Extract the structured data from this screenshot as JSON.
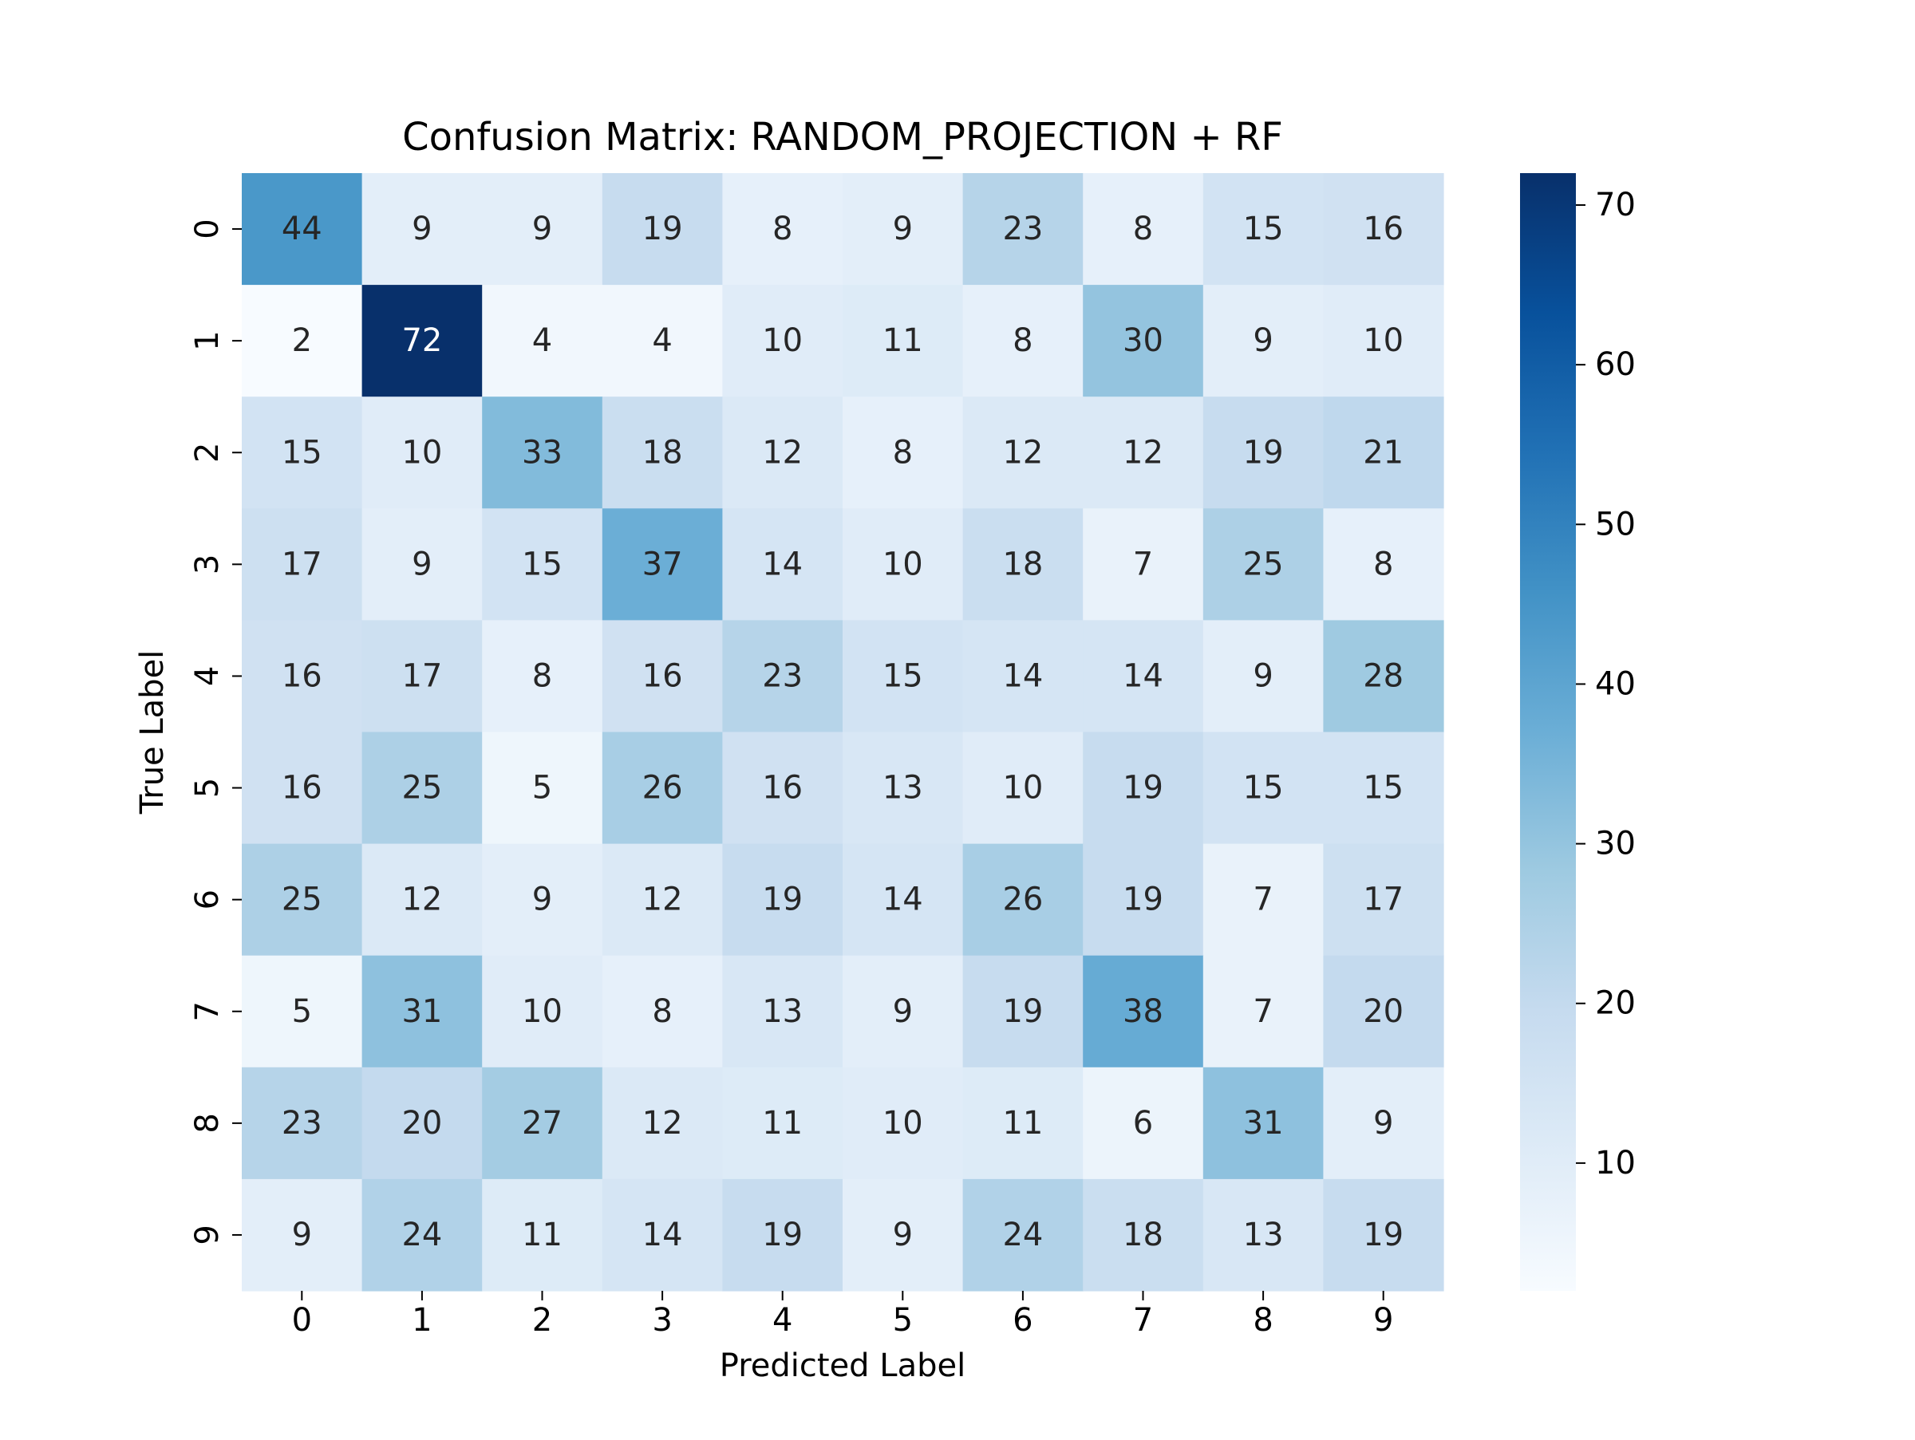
{
  "chart_data": {
    "type": "heatmap",
    "title": "Confusion Matrix: RANDOM_PROJECTION + RF",
    "xlabel": "Predicted Label",
    "ylabel": "True Label",
    "x_categories": [
      "0",
      "1",
      "2",
      "3",
      "4",
      "5",
      "6",
      "7",
      "8",
      "9"
    ],
    "y_categories": [
      "0",
      "1",
      "2",
      "3",
      "4",
      "5",
      "6",
      "7",
      "8",
      "9"
    ],
    "values": [
      [
        44,
        9,
        9,
        19,
        8,
        9,
        23,
        8,
        15,
        16
      ],
      [
        2,
        72,
        4,
        4,
        10,
        11,
        8,
        30,
        9,
        10
      ],
      [
        15,
        10,
        33,
        18,
        12,
        8,
        12,
        12,
        19,
        21
      ],
      [
        17,
        9,
        15,
        37,
        14,
        10,
        18,
        7,
        25,
        8
      ],
      [
        16,
        17,
        8,
        16,
        23,
        15,
        14,
        14,
        9,
        28
      ],
      [
        16,
        25,
        5,
        26,
        16,
        13,
        10,
        19,
        15,
        15
      ],
      [
        25,
        12,
        9,
        12,
        19,
        14,
        26,
        19,
        7,
        17
      ],
      [
        5,
        31,
        10,
        8,
        13,
        9,
        19,
        38,
        7,
        20
      ],
      [
        23,
        20,
        27,
        12,
        11,
        10,
        11,
        6,
        31,
        9
      ],
      [
        9,
        24,
        11,
        14,
        19,
        9,
        24,
        18,
        13,
        19
      ]
    ],
    "colormap": "Blues",
    "colorbar": {
      "range": [
        2,
        72
      ],
      "ticks": [
        10,
        20,
        30,
        40,
        50,
        60,
        70
      ],
      "placement": "right"
    },
    "annotations": "cell values",
    "grid": false
  }
}
